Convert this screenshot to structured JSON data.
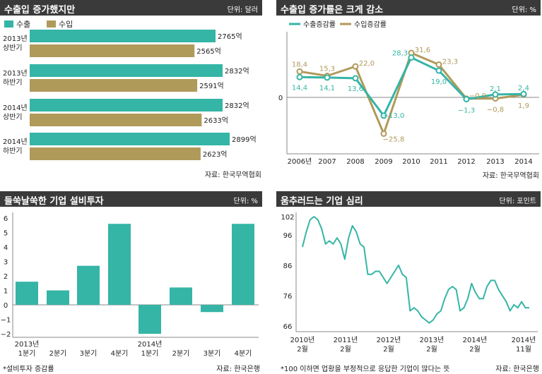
{
  "panels": {
    "p1": {
      "title": "수출입 증가했지만",
      "unit": "단위: 달러",
      "source": "자료: 한국무역협회"
    },
    "p2": {
      "title": "수출입 증가률은 크게 감소",
      "unit": "단위: %",
      "source": "자료: 한국무역협회"
    },
    "p3": {
      "title": "들쑥날쑥한 기업 설비투자",
      "unit": "단위: %",
      "source": "자료: 한국은행",
      "note": "*설비투자 증감률"
    },
    "p4": {
      "title": "움추러드는 기업 심리",
      "unit": "단위: 포인트",
      "source": "자료: 한국은행",
      "note": "*100 이하면 업황을 부정적으로 응답한 기업이 많다는 뜻"
    }
  },
  "colors": {
    "teal": "#35b5a6",
    "olive": "#b09a5a",
    "header": "#3a3a3a"
  },
  "chart_data": [
    {
      "type": "bar",
      "orientation": "horizontal",
      "categories": [
        [
          "2013년",
          "상반기"
        ],
        [
          "2013년",
          "하반기"
        ],
        [
          "2014년",
          "상반기"
        ],
        [
          "2014년",
          "하반기"
        ]
      ],
      "series": [
        {
          "name": "수출",
          "values": [
            2765,
            2832,
            2832,
            2899
          ],
          "labels": [
            "2765억",
            "2832억",
            "2832억",
            "2899억"
          ]
        },
        {
          "name": "수입",
          "values": [
            2565,
            2591,
            2633,
            2623
          ],
          "labels": [
            "2565억",
            "2591억",
            "2633억",
            "2623억"
          ]
        }
      ],
      "legend": "top-left"
    },
    {
      "type": "line",
      "x": [
        "2006년",
        "2007",
        "2008",
        "2009",
        "2010",
        "2011",
        "2012",
        "2013",
        "2014"
      ],
      "series": [
        {
          "name": "수출증감률",
          "values": [
            14.4,
            14.1,
            13.6,
            -13.0,
            28.3,
            19.0,
            -1.3,
            2.1,
            2.4
          ],
          "labels": [
            "14,4",
            "14,1",
            "13,6",
            "−13,0",
            "28,3",
            "19,0",
            "−1,3",
            "2,1",
            "2,4"
          ]
        },
        {
          "name": "수입증감률",
          "values": [
            18.4,
            15.3,
            22.0,
            -25.8,
            31.6,
            23.3,
            -0.9,
            -0.8,
            1.9
          ],
          "labels": [
            "18,4",
            "15,3",
            "22,0",
            "−25,8",
            "31,6",
            "23,3",
            "−0,9",
            "−0,8",
            "1,9"
          ]
        }
      ],
      "yticks": [
        "0"
      ],
      "ylim": [
        -28,
        34
      ],
      "legend": "top-left"
    },
    {
      "type": "bar",
      "categories": [
        [
          "2013년",
          "1분기"
        ],
        [
          "",
          "2분기"
        ],
        [
          "",
          "3분기"
        ],
        [
          "",
          "4분기"
        ],
        [
          "2014년",
          "1분기"
        ],
        [
          "",
          "2분기"
        ],
        [
          "",
          "3분기"
        ],
        [
          "",
          "4분기"
        ]
      ],
      "values": [
        1.6,
        1.0,
        2.7,
        5.6,
        -2.0,
        1.2,
        -0.5,
        5.6
      ],
      "yticks": [
        "6",
        "5",
        "4",
        "3",
        "2",
        "1",
        "0",
        "−1",
        "−2"
      ],
      "ylim": [
        -2.4,
        6.3
      ],
      "grid": false
    },
    {
      "type": "line",
      "values": [
        92,
        97,
        101,
        102,
        101,
        98,
        93,
        94,
        93,
        95,
        93,
        88,
        95,
        99,
        97,
        93,
        92,
        83,
        83,
        84,
        84,
        82,
        80,
        82,
        84,
        86,
        83,
        82,
        71,
        72,
        71,
        69,
        68,
        67,
        68,
        70,
        71,
        75,
        78,
        79,
        78,
        71,
        72,
        75,
        80,
        77,
        75,
        75,
        79,
        81,
        81,
        78,
        76,
        74,
        71,
        73,
        72,
        74,
        72,
        72
      ],
      "yticks": [
        "102",
        "96",
        "86",
        "76",
        "66"
      ],
      "ylim": [
        64,
        104
      ],
      "xticks": [
        [
          "2010년",
          "2월"
        ],
        [
          "2011년",
          "2월"
        ],
        [
          "2012년",
          "2월"
        ],
        [
          "2013년",
          "2월"
        ],
        [
          "2014년",
          "2월"
        ],
        [
          "2014년",
          "11월"
        ]
      ]
    }
  ]
}
